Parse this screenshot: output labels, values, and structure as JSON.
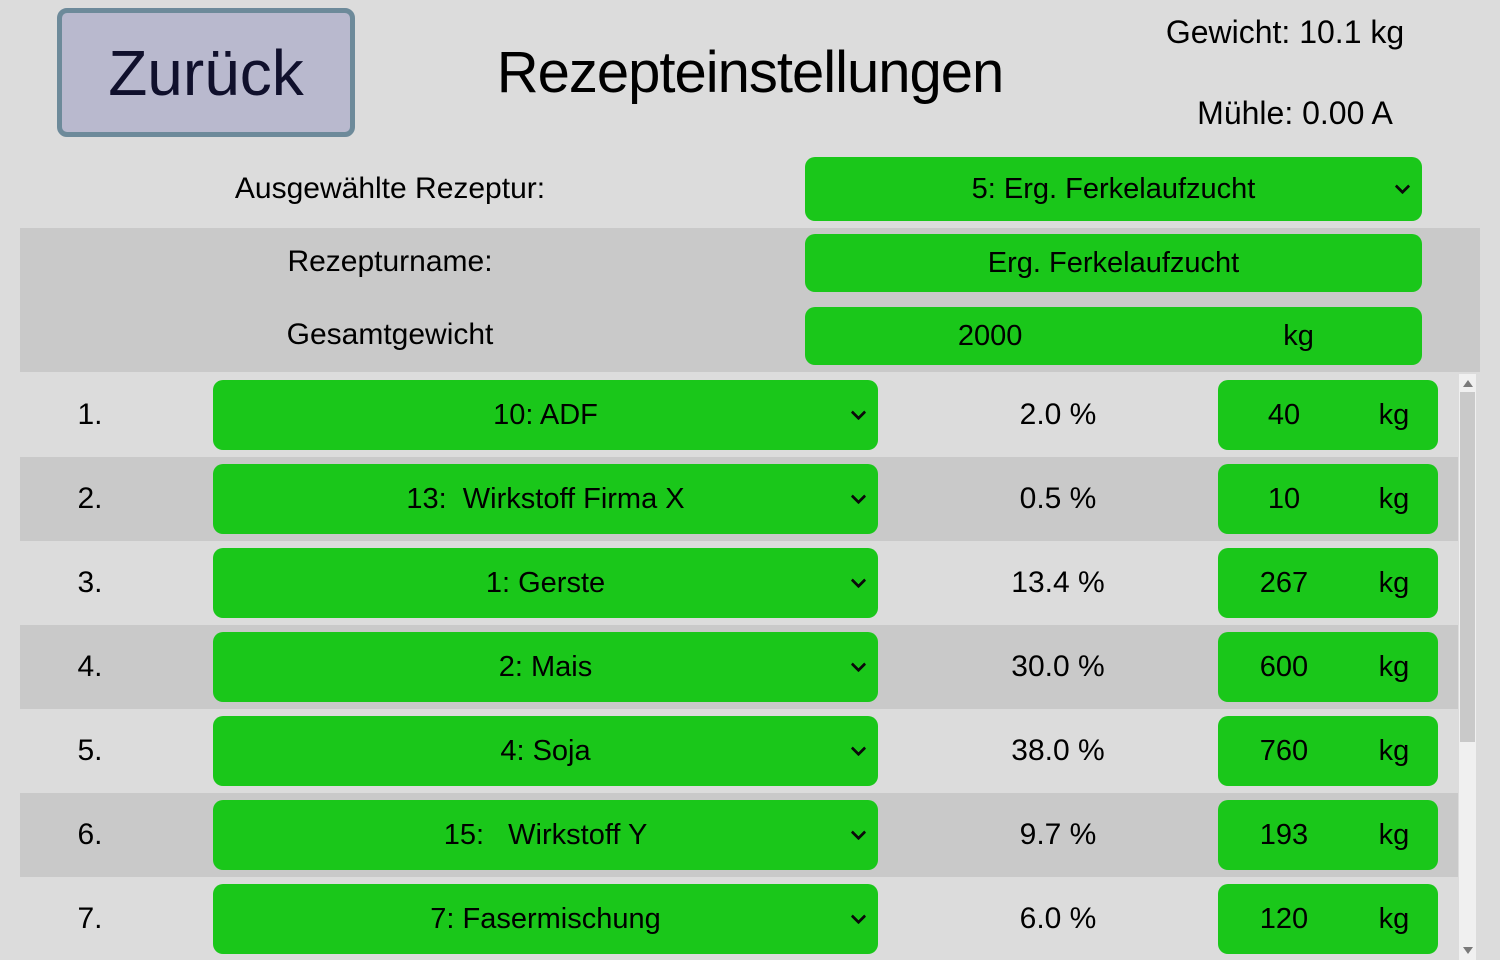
{
  "header": {
    "back_label": "Zurück",
    "title": "Rezepteinstellungen",
    "weight_status": "Gewicht: 10.1 kg",
    "mill_status": "Mühle: 0.00 A"
  },
  "recipe": {
    "selected_label": "Ausgewählte Rezeptur:",
    "selected_value": "5: Erg. Ferkelaufzucht",
    "name_label": "Rezepturname:",
    "name_value": "Erg. Ferkelaufzucht",
    "total_weight_label": "Gesamtgewicht",
    "total_weight_value": "2000",
    "total_weight_unit": "kg"
  },
  "ingredients": {
    "rows": [
      {
        "index": "1.",
        "component": "10: ADF",
        "percent": "2.0 %",
        "amount": "40",
        "unit": "kg"
      },
      {
        "index": "2.",
        "component": "13:  Wirkstoff Firma X",
        "percent": "0.5 %",
        "amount": "10",
        "unit": "kg"
      },
      {
        "index": "3.",
        "component": "1: Gerste",
        "percent": "13.4 %",
        "amount": "267",
        "unit": "kg"
      },
      {
        "index": "4.",
        "component": "2: Mais",
        "percent": "30.0 %",
        "amount": "600",
        "unit": "kg"
      },
      {
        "index": "5.",
        "component": "4: Soja",
        "percent": "38.0 %",
        "amount": "760",
        "unit": "kg"
      },
      {
        "index": "6.",
        "component": "15:   Wirkstoff Y",
        "percent": "9.7 %",
        "amount": "193",
        "unit": "kg"
      },
      {
        "index": "7.",
        "component": "7: Fasermischung",
        "percent": "6.0 %",
        "amount": "120",
        "unit": "kg"
      }
    ]
  },
  "colors": {
    "bg": "#dcdcdc",
    "band": "#c9c9c9",
    "green": "#1ac71a",
    "back-bg": "#b9b9ce",
    "back-border": "#6d8a9a",
    "back-text": "#10102c",
    "track": "#f0f0f0",
    "thumb": "#c9c9c9"
  }
}
